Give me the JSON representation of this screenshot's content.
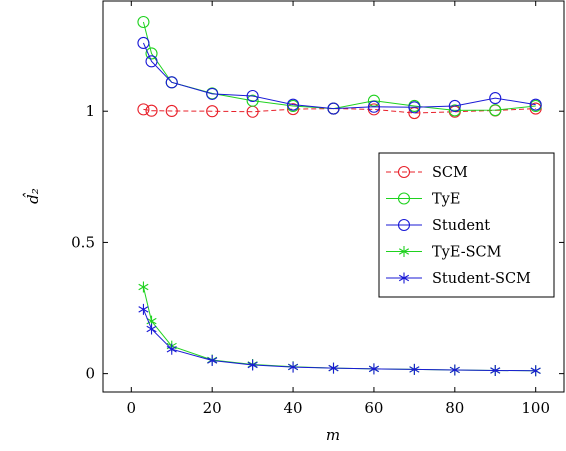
{
  "chart_data": {
    "type": "line",
    "xlabel": "m",
    "ylabel": "d̂₂",
    "xlim": [
      -7,
      107
    ],
    "ylim": [
      -0.07,
      1.42
    ],
    "xticks": [
      "0",
      "20",
      "40",
      "60",
      "80",
      "100"
    ],
    "yticks": [
      "0",
      "0.5",
      "1"
    ],
    "xtick_values": [
      0,
      20,
      40,
      60,
      80,
      100
    ],
    "ytick_values": [
      0,
      0.5,
      1
    ],
    "grid": false,
    "legend_position": "right",
    "x": [
      3,
      5,
      10,
      20,
      30,
      40,
      50,
      60,
      70,
      80,
      90,
      100
    ],
    "series": [
      {
        "name": "SCM",
        "color": "#e8202a",
        "marker": "circle",
        "line_style": "dashed",
        "values": [
          1.007,
          1.002,
          1.001,
          1.0,
          0.998,
          1.008,
          1.01,
          1.007,
          0.993,
          0.998,
          1.003,
          1.01
        ]
      },
      {
        "name": "TyE",
        "color": "#1fd21f",
        "marker": "circle",
        "line_style": "solid",
        "values": [
          1.34,
          1.22,
          1.11,
          1.068,
          1.04,
          1.02,
          1.01,
          1.04,
          1.02,
          1.003,
          1.004,
          1.02
        ]
      },
      {
        "name": "Student",
        "color": "#1a1ad6",
        "marker": "circle",
        "line_style": "solid",
        "values": [
          1.26,
          1.19,
          1.11,
          1.066,
          1.058,
          1.025,
          1.01,
          1.017,
          1.015,
          1.02,
          1.05,
          1.025
        ]
      },
      {
        "name": "TyE-SCM",
        "color": "#1fd21f",
        "marker": "star",
        "line_style": "solid",
        "values": [
          0.33,
          0.2,
          0.105,
          0.052,
          0.035,
          0.026,
          0.021,
          0.018,
          0.016,
          0.014,
          0.012,
          0.011
        ]
      },
      {
        "name": "Student-SCM",
        "color": "#1a1ad6",
        "marker": "star",
        "line_style": "solid",
        "values": [
          0.245,
          0.17,
          0.093,
          0.05,
          0.033,
          0.025,
          0.021,
          0.018,
          0.016,
          0.014,
          0.012,
          0.011
        ]
      }
    ]
  }
}
